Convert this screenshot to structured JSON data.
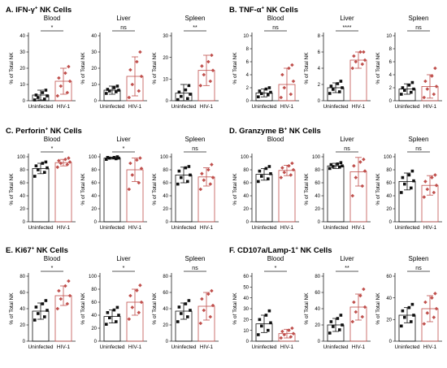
{
  "chart_data": [
    {
      "type": "bar",
      "letter": "A.",
      "marker": "IFN-γ",
      "sup": "+",
      "suffix": " NK Cells",
      "ylabel": "% of Total NK",
      "categories": [
        "Uninfected",
        "HIV-1"
      ],
      "subplots": [
        {
          "title": "Blood",
          "ylim": [
            0,
            40
          ],
          "yticks": [
            "0",
            "10",
            "20",
            "30",
            "40"
          ],
          "sig": "*",
          "series": [
            {
              "name": "Uninfected",
              "mean": 3.5,
              "err": 3.0,
              "points": [
                0.5,
                1,
                2,
                3,
                3.5,
                5,
                6.5
              ]
            },
            {
              "name": "HIV-1",
              "mean": 12,
              "err": 8,
              "points": [
                3,
                5,
                9,
                12,
                14,
                17,
                21
              ]
            }
          ]
        },
        {
          "title": "Liver",
          "ylim": [
            0,
            40
          ],
          "yticks": [
            "0",
            "10",
            "20",
            "30",
            "40"
          ],
          "sig": "ns",
          "series": [
            {
              "name": "Uninfected",
              "mean": 6.5,
              "err": 2.5,
              "points": [
                4.5,
                5.5,
                6,
                6.5,
                7,
                8,
                9
              ]
            },
            {
              "name": "HIV-1",
              "mean": 15,
              "err": 12,
              "points": [
                2,
                6,
                10,
                15,
                19,
                24,
                30
              ]
            }
          ]
        },
        {
          "title": "Spleen",
          "ylim": [
            0,
            30
          ],
          "yticks": [
            "0",
            "10",
            "20",
            "30"
          ],
          "sig": "**",
          "series": [
            {
              "name": "Uninfected",
              "mean": 3.5,
              "err": 4,
              "points": [
                0.5,
                1,
                2,
                3,
                4,
                5,
                7
              ]
            },
            {
              "name": "HIV-1",
              "mean": 14,
              "err": 7,
              "points": [
                7,
                9,
                12,
                14,
                16,
                18,
                21
              ]
            }
          ]
        }
      ]
    },
    {
      "type": "bar",
      "letter": "B.",
      "marker": "TNF-α",
      "sup": "+",
      "suffix": " NK Cells",
      "ylabel": "% of Total NK",
      "categories": [
        "Uninfected",
        "HIV-1"
      ],
      "subplots": [
        {
          "title": "Blood",
          "ylim": [
            0,
            10
          ],
          "yticks": [
            "0",
            "2",
            "4",
            "6",
            "8",
            "10"
          ],
          "sig": "ns",
          "series": [
            {
              "name": "Uninfected",
              "mean": 1.2,
              "err": 0.6,
              "points": [
                0.6,
                0.9,
                1.1,
                1.3,
                1.5,
                1.8,
                2.0
              ]
            },
            {
              "name": "HIV-1",
              "mean": 2.5,
              "err": 2.5,
              "points": [
                0.5,
                1,
                2,
                3,
                4,
                5,
                5.5
              ]
            }
          ]
        },
        {
          "title": "Liver",
          "ylim": [
            0,
            8
          ],
          "yticks": [
            "0",
            "2",
            "4",
            "6",
            "8"
          ],
          "sig": "****",
          "series": [
            {
              "name": "Uninfected",
              "mean": 1.6,
              "err": 0.6,
              "points": [
                0.9,
                1.1,
                1.4,
                1.6,
                1.8,
                2.1,
                2.4
              ]
            },
            {
              "name": "HIV-1",
              "mean": 5.0,
              "err": 1.0,
              "points": [
                4,
                4.5,
                4.8,
                5,
                5.5,
                6,
                6
              ]
            }
          ]
        },
        {
          "title": "Spleen",
          "ylim": [
            0,
            10
          ],
          "yticks": [
            "0",
            "2",
            "4",
            "6",
            "8",
            "10"
          ],
          "sig": "ns",
          "series": [
            {
              "name": "Uninfected",
              "mean": 1.8,
              "err": 0.8,
              "points": [
                1,
                1.3,
                1.6,
                1.8,
                2,
                2.4,
                2.8
              ]
            },
            {
              "name": "HIV-1",
              "mean": 2.2,
              "err": 1.8,
              "points": [
                0.5,
                1,
                1.8,
                2.2,
                3,
                3.8,
                5
              ]
            }
          ]
        }
      ]
    },
    {
      "type": "bar",
      "letter": "C.",
      "marker": "Perforin",
      "sup": "+",
      "suffix": " NK Cells",
      "ylabel": "% of Total NK",
      "categories": [
        "Uninfected",
        "HIV-1"
      ],
      "subplots": [
        {
          "title": "Blood",
          "ylim": [
            0,
            100
          ],
          "yticks": [
            "0",
            "20",
            "40",
            "60",
            "80",
            "100"
          ],
          "sig": "*",
          "series": [
            {
              "name": "Uninfected",
              "mean": 82,
              "err": 8,
              "points": [
                70,
                76,
                80,
                83,
                86,
                90,
                92
              ]
            },
            {
              "name": "HIV-1",
              "mean": 91,
              "err": 5,
              "points": [
                84,
                88,
                90,
                92,
                94,
                96,
                98
              ]
            }
          ]
        },
        {
          "title": "Liver",
          "ylim": [
            0,
            100
          ],
          "yticks": [
            "0",
            "20",
            "40",
            "60",
            "80",
            "100"
          ],
          "sig": "*",
          "series": [
            {
              "name": "Uninfected",
              "mean": 98,
              "err": 1.5,
              "points": [
                96,
                97,
                98,
                98,
                99,
                99,
                100
              ]
            },
            {
              "name": "HIV-1",
              "mean": 80,
              "err": 18,
              "points": [
                50,
                60,
                72,
                82,
                90,
                95,
                98
              ]
            }
          ]
        },
        {
          "title": "Spleen",
          "ylim": [
            0,
            100
          ],
          "yticks": [
            "0",
            "20",
            "40",
            "60",
            "80",
            "100"
          ],
          "sig": "ns",
          "series": [
            {
              "name": "Uninfected",
              "mean": 72,
              "err": 12,
              "points": [
                58,
                62,
                68,
                72,
                78,
                83,
                85
              ]
            },
            {
              "name": "HIV-1",
              "mean": 69,
              "err": 14,
              "points": [
                50,
                58,
                64,
                68,
                74,
                80,
                88
              ]
            }
          ]
        }
      ]
    },
    {
      "type": "bar",
      "letter": "D.",
      "marker": "Granzyme B",
      "sup": "+",
      "suffix": " NK Cells",
      "ylabel": "% of Total NK",
      "categories": [
        "Uninfected",
        "HIV-1"
      ],
      "subplots": [
        {
          "title": "Blood",
          "ylim": [
            0,
            100
          ],
          "yticks": [
            "0",
            "20",
            "40",
            "60",
            "80",
            "100"
          ],
          "sig": "",
          "series": [
            {
              "name": "Uninfected",
              "mean": 73,
              "err": 9,
              "points": [
                62,
                66,
                70,
                74,
                78,
                82,
                85
              ]
            },
            {
              "name": "HIV-1",
              "mean": 79,
              "err": 8,
              "points": [
                68,
                72,
                76,
                80,
                83,
                86,
                90
              ]
            }
          ]
        },
        {
          "title": "Liver",
          "ylim": [
            0,
            100
          ],
          "yticks": [
            "0",
            "20",
            "40",
            "60",
            "80",
            "100"
          ],
          "sig": "ns",
          "series": [
            {
              "name": "Uninfected",
              "mean": 86,
              "err": 4,
              "points": [
                82,
                84,
                85,
                86,
                88,
                89,
                91
              ]
            },
            {
              "name": "HIV-1",
              "mean": 77,
              "err": 22,
              "points": [
                40,
                55,
                68,
                78,
                86,
                92,
                96
              ]
            }
          ]
        },
        {
          "title": "Spleen",
          "ylim": [
            0,
            100
          ],
          "yticks": [
            "0",
            "20",
            "40",
            "60",
            "80",
            "100"
          ],
          "sig": "ns",
          "series": [
            {
              "name": "Uninfected",
              "mean": 62,
              "err": 13,
              "points": [
                45,
                52,
                58,
                63,
                68,
                72,
                78
              ]
            },
            {
              "name": "HIV-1",
              "mean": 56,
              "err": 15,
              "points": [
                38,
                45,
                50,
                56,
                62,
                68,
                72
              ]
            }
          ]
        }
      ]
    },
    {
      "type": "bar",
      "letter": "E.",
      "marker": "Ki67",
      "sup": "+",
      "suffix": " NK Cells",
      "ylabel": "% of Total NK",
      "categories": [
        "Uninfected",
        "HIV-1"
      ],
      "subplots": [
        {
          "title": "Blood",
          "ylim": [
            0,
            80
          ],
          "yticks": [
            "0",
            "20",
            "40",
            "60",
            "80"
          ],
          "sig": "*",
          "series": [
            {
              "name": "Uninfected",
              "mean": 37,
              "err": 10,
              "points": [
                26,
                30,
                34,
                38,
                42,
                46,
                50
              ]
            },
            {
              "name": "HIV-1",
              "mean": 56,
              "err": 12,
              "points": [
                40,
                46,
                52,
                56,
                62,
                68,
                74
              ]
            }
          ]
        },
        {
          "title": "Liver",
          "ylim": [
            0,
            100
          ],
          "yticks": [
            "0",
            "20",
            "40",
            "60",
            "80",
            "100"
          ],
          "sig": "*",
          "series": [
            {
              "name": "Uninfected",
              "mean": 38,
              "err": 10,
              "points": [
                26,
                30,
                36,
                40,
                44,
                48,
                52
              ]
            },
            {
              "name": "HIV-1",
              "mean": 60,
              "err": 20,
              "points": [
                34,
                44,
                52,
                60,
                70,
                78,
                86
              ]
            }
          ]
        },
        {
          "title": "Spleen",
          "ylim": [
            0,
            80
          ],
          "yticks": [
            "0",
            "20",
            "40",
            "60",
            "80"
          ],
          "sig": "ns",
          "series": [
            {
              "name": "Uninfected",
              "mean": 37,
              "err": 10,
              "points": [
                24,
                30,
                34,
                38,
                42,
                46,
                50
              ]
            },
            {
              "name": "HIV-1",
              "mean": 43,
              "err": 17,
              "points": [
                22,
                30,
                38,
                44,
                52,
                58,
                62
              ]
            }
          ]
        }
      ]
    },
    {
      "type": "bar",
      "letter": "F.",
      "marker": "CD107a/Lamp-1",
      "sup": "+",
      "suffix": " NK Cells",
      "ylabel": "% of Total NK",
      "categories": [
        "Uninfected",
        "HIV-1"
      ],
      "subplots": [
        {
          "title": "Blood",
          "ylim": [
            0,
            60
          ],
          "yticks": [
            "0",
            "10",
            "20",
            "30",
            "40",
            "50",
            "60"
          ],
          "sig": "*",
          "series": [
            {
              "name": "Uninfected",
              "mean": 16,
              "err": 8,
              "points": [
                6,
                10,
                14,
                17,
                20,
                24,
                28
              ]
            },
            {
              "name": "HIV-1",
              "mean": 7,
              "err": 4,
              "points": [
                3,
                4,
                6,
                7,
                9,
                10,
                12
              ]
            }
          ]
        },
        {
          "title": "Liver",
          "ylim": [
            0,
            80
          ],
          "yticks": [
            "0",
            "20",
            "40",
            "60",
            "80"
          ],
          "sig": "**",
          "series": [
            {
              "name": "Uninfected",
              "mean": 20,
              "err": 8,
              "points": [
                10,
                14,
                18,
                20,
                24,
                28,
                32
              ]
            },
            {
              "name": "HIV-1",
              "mean": 42,
              "err": 16,
              "points": [
                24,
                30,
                36,
                42,
                48,
                56,
                64
              ]
            }
          ]
        },
        {
          "title": "Spleen",
          "ylim": [
            0,
            60
          ],
          "yticks": [
            "0",
            "20",
            "40",
            "60"
          ],
          "sig": "ns",
          "series": [
            {
              "name": "Uninfected",
              "mean": 24,
              "err": 7,
              "points": [
                14,
                18,
                22,
                24,
                28,
                31,
                34
              ]
            },
            {
              "name": "HIV-1",
              "mean": 30,
              "err": 12,
              "points": [
                16,
                22,
                26,
                30,
                36,
                40,
                44
              ]
            }
          ]
        }
      ]
    }
  ],
  "colors": {
    "uninfected": "#111111",
    "hiv": "#c0504d",
    "axis": "#222222"
  }
}
